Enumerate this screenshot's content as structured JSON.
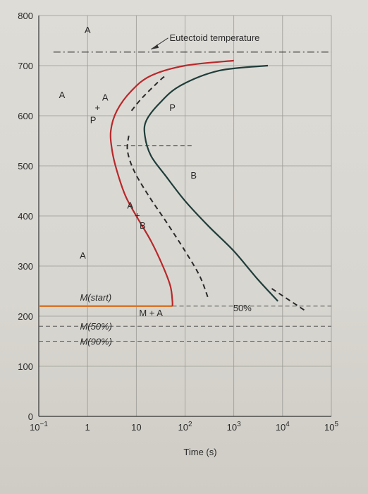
{
  "chart_data": {
    "type": "line",
    "title": "",
    "xlabel": "Time (s)",
    "ylabel": "",
    "xscale": "log",
    "xlim": [
      0.1,
      100000
    ],
    "ylim": [
      0,
      800
    ],
    "grid": true,
    "y_ticks": [
      "0",
      "100",
      "200",
      "300",
      "400",
      "500",
      "600",
      "700",
      "800"
    ],
    "x_ticks": [
      {
        "base": "10",
        "exp": "−1"
      },
      {
        "base": "1",
        "exp": ""
      },
      {
        "base": "10",
        "exp": ""
      },
      {
        "base": "10",
        "exp": "2"
      },
      {
        "base": "10",
        "exp": "3"
      },
      {
        "base": "10",
        "exp": "4"
      },
      {
        "base": "10",
        "exp": "5"
      }
    ],
    "colors": {
      "start": "#b8282b",
      "finish": "#1f3d3a",
      "mstart": "#d9772a",
      "dashed": "#2a2a2a"
    },
    "series": [
      {
        "name": "",
        "style": "start-curve",
        "points": [
          [
            1000,
            710
          ],
          [
            100,
            700
          ],
          [
            20,
            680
          ],
          [
            8,
            650
          ],
          [
            4,
            610
          ],
          [
            3,
            570
          ],
          [
            3.2,
            530
          ],
          [
            4,
            490
          ],
          [
            6,
            440
          ],
          [
            10,
            400
          ],
          [
            20,
            350
          ],
          [
            35,
            300
          ],
          [
            50,
            260
          ],
          [
            55,
            230
          ],
          [
            55,
            220
          ]
        ]
      },
      {
        "name": "",
        "style": "finish-curve",
        "points": [
          [
            5000,
            700
          ],
          [
            500,
            690
          ],
          [
            80,
            660
          ],
          [
            30,
            625
          ],
          [
            16,
            590
          ],
          [
            15,
            560
          ],
          [
            20,
            520
          ],
          [
            40,
            480
          ],
          [
            100,
            430
          ],
          [
            300,
            380
          ],
          [
            1000,
            330
          ],
          [
            3000,
            275
          ],
          [
            8000,
            230
          ]
        ]
      },
      {
        "name": "",
        "style": "fifty-percent-dashed",
        "points": [
          [
            8,
            610
          ],
          [
            13,
            635
          ],
          [
            30,
            670
          ],
          [
            40,
            680
          ]
        ],
        "points2": [
          [
            7,
            560
          ],
          [
            6.6,
            530
          ],
          [
            9,
            490
          ],
          [
            18,
            440
          ],
          [
            40,
            390
          ],
          [
            100,
            330
          ],
          [
            200,
            280
          ],
          [
            300,
            235
          ]
        ]
      },
      {
        "name": "",
        "style": "fifty-percent-dashed-right",
        "points": [
          [
            6000,
            255
          ],
          [
            30000,
            210
          ]
        ]
      }
    ],
    "hlines": [
      {
        "y": 727,
        "label": "Eutectoid temperature",
        "style": "dashdot"
      },
      {
        "y": 540,
        "label": "",
        "style": "dashed-short"
      },
      {
        "y": 220,
        "label": "M(start)",
        "style": "solid-orange"
      },
      {
        "y": 220,
        "label": "",
        "style": "dashed-right"
      },
      {
        "y": 180,
        "label": "M(50%)",
        "style": "dashed"
      },
      {
        "y": 150,
        "label": "M(90%)",
        "style": "dashed"
      }
    ],
    "annotations": [
      {
        "text": "A",
        "x": 1,
        "y": 765
      },
      {
        "text": "A",
        "x": 0.3,
        "y": 635
      },
      {
        "text": "P",
        "x": 55,
        "y": 610
      },
      {
        "text": "B",
        "x": 150,
        "y": 475
      },
      {
        "text": "A",
        "x": 0.8,
        "y": 315
      },
      {
        "text": "M + A",
        "x": 20,
        "y": 200
      },
      {
        "text": "50%",
        "x": 1500,
        "y": 210
      },
      {
        "text": "P",
        "x": 1.3,
        "y": 585
      },
      {
        "text": "+",
        "x": 1.6,
        "y": 610
      },
      {
        "text": "A",
        "x": 2.3,
        "y": 630
      },
      {
        "text": "A",
        "x": 7.5,
        "y": 415
      },
      {
        "text": "+",
        "x": 10.5,
        "y": 395
      },
      {
        "text": "B",
        "x": 13.5,
        "y": 375
      }
    ]
  }
}
